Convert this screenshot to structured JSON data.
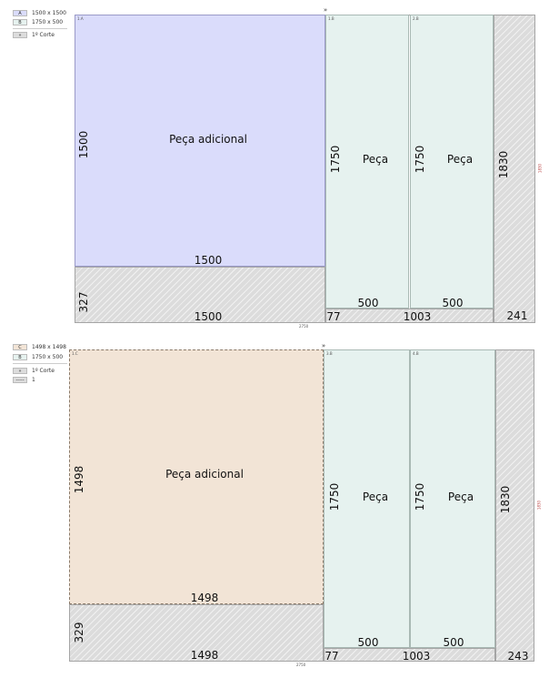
{
  "diagram1": {
    "legend": [
      {
        "code": "A",
        "text": "1500 x 1500",
        "color": "#dadcfb"
      },
      {
        "code": "B",
        "text": "1750 x 500",
        "color": "#e6f2ef"
      },
      {
        "code": "»",
        "text": "1º Corte",
        "color": "#dcdcdc"
      }
    ],
    "pieces": {
      "big": {
        "name": "Peça adicional",
        "width_label": "1500",
        "height_label": "1500",
        "tag": "1.A"
      },
      "p1": {
        "name": "Peça",
        "height_label": "1750",
        "width_label": "500",
        "tag": "1.B"
      },
      "p2": {
        "name": "Peça",
        "height_label": "1750",
        "width_label": "500",
        "tag": "2.B"
      }
    },
    "waste": {
      "bottom_left_height": "327",
      "bottom_left_width": "1500",
      "mid_height": "77",
      "mid_width": "1003",
      "right_width": "241",
      "right_height": "1830"
    },
    "sheet_width": "2750",
    "sheet_height": "1830",
    "cut_marker": "»"
  },
  "diagram2": {
    "legend": [
      {
        "code": "C",
        "text": "1498 x 1498",
        "color": "#f2e4d6"
      },
      {
        "code": "B",
        "text": "1750 x 500",
        "color": "#e6f2ef"
      },
      {
        "code": "»",
        "text": "1º Corte",
        "color": "#dcdcdc"
      },
      {
        "code": "-----",
        "text": "1",
        "color": "#dcdcdc"
      }
    ],
    "pieces": {
      "big": {
        "name": "Peça adicional",
        "width_label": "1498",
        "height_label": "1498",
        "tag": "1.C"
      },
      "p1": {
        "name": "Peça",
        "height_label": "1750",
        "width_label": "500",
        "tag": "3.B"
      },
      "p2": {
        "name": "Peça",
        "height_label": "1750",
        "width_label": "500",
        "tag": "4.B"
      }
    },
    "waste": {
      "bottom_left_height": "329",
      "bottom_left_width": "1498",
      "mid_height": "77",
      "mid_width": "1003",
      "right_width": "243",
      "right_height": "1830"
    },
    "sheet_width": "2750",
    "sheet_height": "1830",
    "cut_marker": "»"
  }
}
